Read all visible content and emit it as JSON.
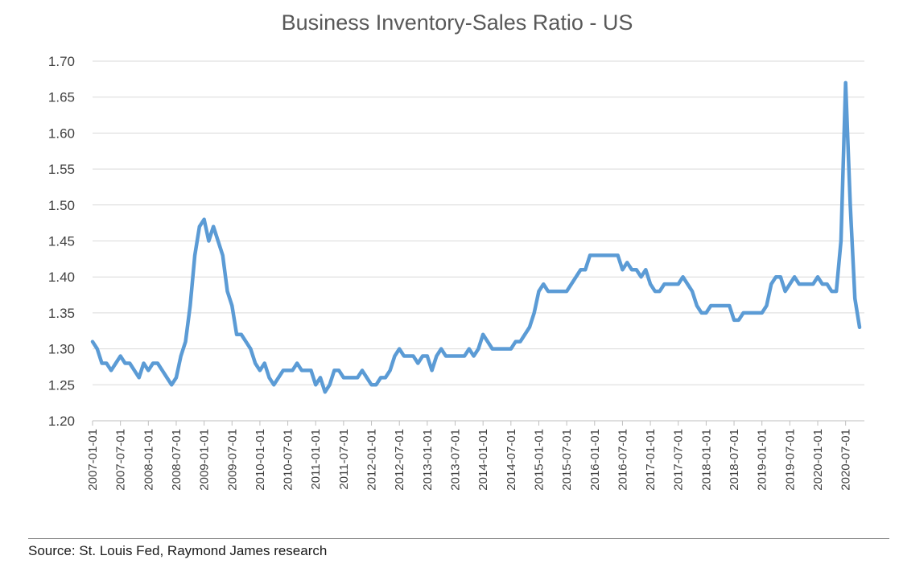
{
  "chart_data": {
    "type": "line",
    "title": "Business Inventory-Sales Ratio - US",
    "xlabel": "",
    "ylabel": "",
    "ylim": [
      1.2,
      1.7
    ],
    "y_ticks": [
      "1.20",
      "1.25",
      "1.30",
      "1.35",
      "1.40",
      "1.45",
      "1.50",
      "1.55",
      "1.60",
      "1.65",
      "1.70"
    ],
    "x_ticks": [
      "2007-01-01",
      "2007-07-01",
      "2008-01-01",
      "2008-07-01",
      "2009-01-01",
      "2009-07-01",
      "2010-01-01",
      "2010-07-01",
      "2011-01-01",
      "2011-07-01",
      "2012-01-01",
      "2012-07-01",
      "2013-01-01",
      "2013-07-01",
      "2014-01-01",
      "2014-07-01",
      "2015-01-01",
      "2015-07-01",
      "2016-01-01",
      "2016-07-01",
      "2017-01-01",
      "2017-07-01",
      "2018-01-01",
      "2018-07-01",
      "2019-01-01",
      "2019-07-01",
      "2020-01-01",
      "2020-07-01"
    ],
    "grid": "horizontal",
    "legend": "none",
    "series": [
      {
        "color": "#5b9bd5",
        "start": "2007-01",
        "frequency": "monthly",
        "values": [
          1.31,
          1.3,
          1.28,
          1.28,
          1.27,
          1.28,
          1.29,
          1.28,
          1.28,
          1.27,
          1.26,
          1.28,
          1.27,
          1.28,
          1.28,
          1.27,
          1.26,
          1.25,
          1.26,
          1.29,
          1.31,
          1.36,
          1.43,
          1.47,
          1.48,
          1.45,
          1.47,
          1.45,
          1.43,
          1.38,
          1.36,
          1.32,
          1.32,
          1.31,
          1.3,
          1.28,
          1.27,
          1.28,
          1.26,
          1.25,
          1.26,
          1.27,
          1.27,
          1.27,
          1.28,
          1.27,
          1.27,
          1.27,
          1.25,
          1.26,
          1.24,
          1.25,
          1.27,
          1.27,
          1.26,
          1.26,
          1.26,
          1.26,
          1.27,
          1.26,
          1.25,
          1.25,
          1.26,
          1.26,
          1.27,
          1.29,
          1.3,
          1.29,
          1.29,
          1.29,
          1.28,
          1.29,
          1.29,
          1.27,
          1.29,
          1.3,
          1.29,
          1.29,
          1.29,
          1.29,
          1.29,
          1.3,
          1.29,
          1.3,
          1.32,
          1.31,
          1.3,
          1.3,
          1.3,
          1.3,
          1.3,
          1.31,
          1.31,
          1.32,
          1.33,
          1.35,
          1.38,
          1.39,
          1.38,
          1.38,
          1.38,
          1.38,
          1.38,
          1.39,
          1.4,
          1.41,
          1.41,
          1.43,
          1.43,
          1.43,
          1.43,
          1.43,
          1.43,
          1.43,
          1.41,
          1.42,
          1.41,
          1.41,
          1.4,
          1.41,
          1.39,
          1.38,
          1.38,
          1.39,
          1.39,
          1.39,
          1.39,
          1.4,
          1.39,
          1.38,
          1.36,
          1.35,
          1.35,
          1.36,
          1.36,
          1.36,
          1.36,
          1.36,
          1.34,
          1.34,
          1.35,
          1.35,
          1.35,
          1.35,
          1.35,
          1.36,
          1.39,
          1.4,
          1.4,
          1.38,
          1.39,
          1.4,
          1.39,
          1.39,
          1.39,
          1.39,
          1.4,
          1.39,
          1.39,
          1.38,
          1.38,
          1.45,
          1.67,
          1.5,
          1.37,
          1.33
        ]
      }
    ]
  },
  "source_note": "Source: St. Louis Fed, Raymond James research"
}
